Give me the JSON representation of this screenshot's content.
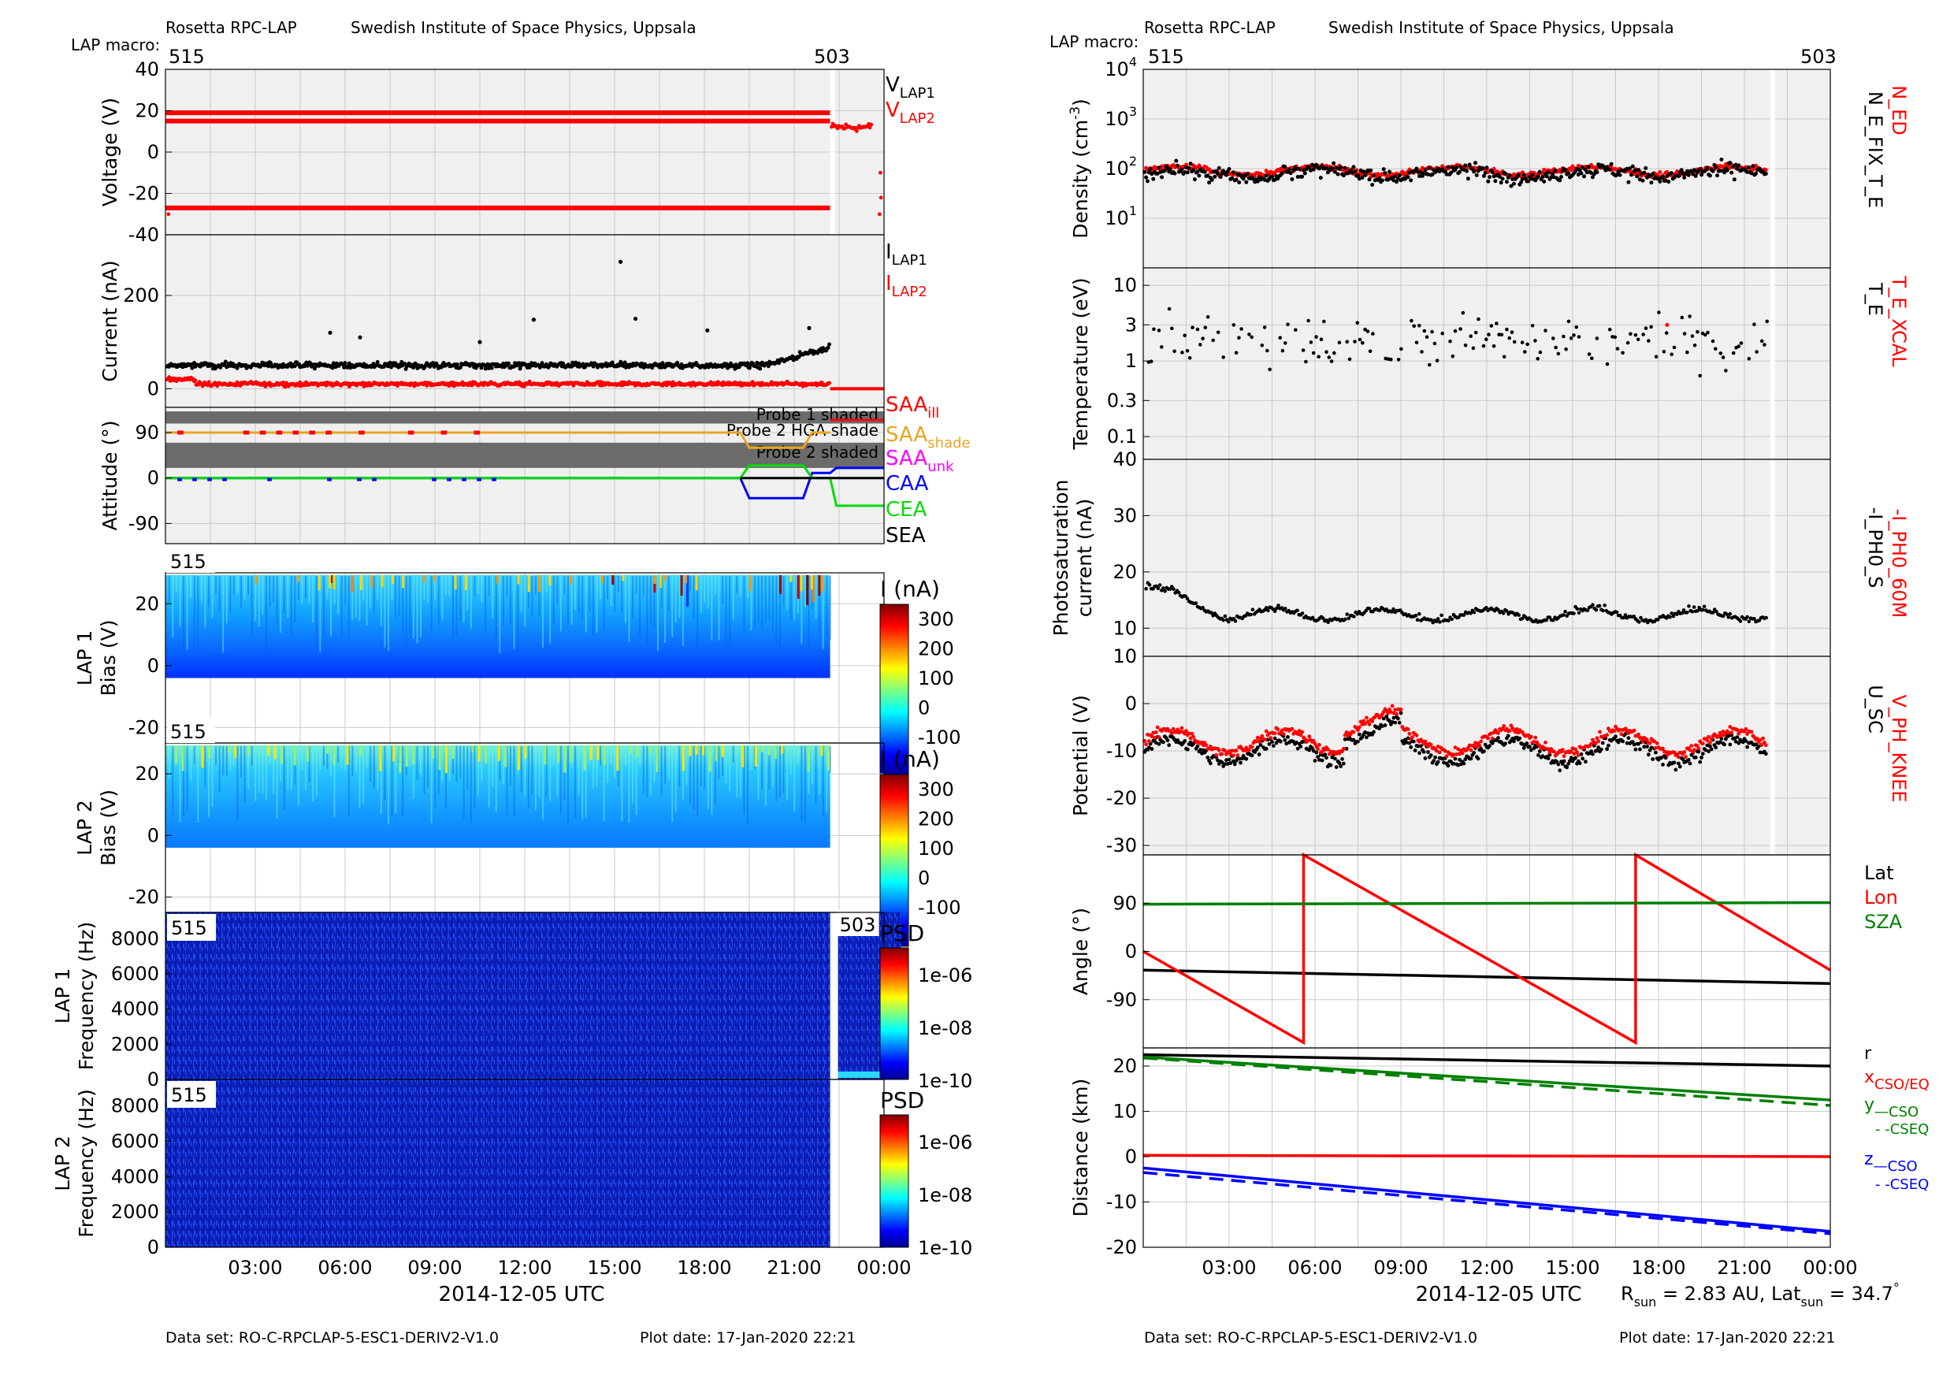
{
  "header": {
    "instrument": "Rosetta RPC-LAP",
    "institute": "Swedish Institute of Space Physics, Uppsala",
    "macro_label": "LAP macro:",
    "macro_start": "515",
    "macro_end": "503",
    "dataset": "Data set: RO-C-RPCLAP-5-ESC1-DERIV2-V1.0",
    "plot_date": "Plot date: 17-Jan-2020 22:21",
    "xlabel": "2014-12-05 UTC",
    "x_ticks": [
      "03:00",
      "06:00",
      "09:00",
      "12:00",
      "15:00",
      "18:00",
      "21:00",
      "00:00"
    ],
    "rsun_label": "R",
    "rsun_sub": "sun",
    "rsun_value": " = 2.83 AU, Lat",
    "lat_sub": "sun",
    "lat_value": " = 34.7",
    "degree": "°"
  },
  "colors": {
    "panel_bg": "#f0f0f0",
    "grid": "#c8c8c8",
    "red": "#ff0000",
    "black": "#000000",
    "blue": "#0000ff",
    "green": "#00dd00",
    "dark_green": "#008000",
    "orange": "#eaa420",
    "magenta": "#ff00ff",
    "shade": "#6b6b6b"
  },
  "chart_data": [
    {
      "id": "voltage",
      "type": "line",
      "ylabel": "Voltage (V)",
      "yticks": [
        "40",
        "20",
        "0",
        "-20",
        "-40"
      ],
      "ylim": [
        -40,
        40
      ],
      "series": [
        {
          "name": "V",
          "sub": "LAP1",
          "color": "#000000"
        },
        {
          "name": "V",
          "sub": "LAP2",
          "color": "#ff0000"
        }
      ],
      "levels": [
        19,
        15,
        -27
      ],
      "after_macro_level": 10,
      "macro_switch": 22.2
    },
    {
      "id": "current",
      "type": "scatter",
      "ylabel": "Current (nA)",
      "yticks": [
        "200",
        "0"
      ],
      "ylim": [
        -40,
        330
      ],
      "series": [
        {
          "name": "I",
          "sub": "LAP1",
          "color": "#000000",
          "baseline": 50
        },
        {
          "name": "I",
          "sub": "LAP2",
          "color": "#ff0000",
          "baseline": 10
        }
      ],
      "outliers": [
        [
          15.2,
          272
        ],
        [
          12.3,
          148
        ],
        [
          15.7,
          150
        ],
        [
          18.1,
          125
        ],
        [
          21.5,
          130
        ],
        [
          5.5,
          120
        ],
        [
          6.5,
          110
        ],
        [
          10.5,
          100
        ]
      ],
      "after_macro_level": 0
    },
    {
      "id": "attitude",
      "type": "line",
      "ylabel": "Attitude (°)",
      "yticks": [
        "90",
        "0",
        "-90"
      ],
      "ylim": [
        -130,
        140
      ],
      "shade_labels": [
        "Probe 1 shaded",
        "Probe 2 HGA shade",
        "Probe 2 shaded"
      ],
      "series": [
        {
          "name": "SAA",
          "sub": "ill",
          "color": "#ff0000"
        },
        {
          "name": "SAA",
          "sub": "shade",
          "color": "#eaa420"
        },
        {
          "name": "SAA",
          "sub": "unk",
          "color": "#ff00ff"
        },
        {
          "name": "CAA",
          "sub": "",
          "color": "#0000ff"
        },
        {
          "name": "CEA",
          "sub": "",
          "color": "#00dd00"
        },
        {
          "name": "SEA",
          "sub": "",
          "color": "#000000"
        }
      ],
      "saa": 90,
      "caa": 0,
      "cea": 0
    },
    {
      "id": "lap1_bias",
      "type": "heatmap",
      "ylabel": [
        "LAP 1",
        "Bias (V)"
      ],
      "yticks": [
        "20",
        "0",
        "-20"
      ],
      "ylim": [
        -25,
        30
      ],
      "macro_tag": "515",
      "colorbar_title": "I (nA)",
      "colorbar_ticks": [
        "300",
        "200",
        "100",
        "0",
        "-100"
      ]
    },
    {
      "id": "lap2_bias",
      "type": "heatmap",
      "ylabel": [
        "LAP 2",
        "Bias (V)"
      ],
      "yticks": [
        "20",
        "0",
        "-20"
      ],
      "ylim": [
        -25,
        30
      ],
      "macro_tag": "515",
      "colorbar_title": "I (nA)",
      "colorbar_ticks": [
        "300",
        "200",
        "100",
        "0",
        "-100"
      ]
    },
    {
      "id": "lap1_freq",
      "type": "heatmap",
      "ylabel": [
        "LAP 1",
        "Frequency (Hz)"
      ],
      "yticks": [
        "8000",
        "6000",
        "4000",
        "2000",
        "0"
      ],
      "ylim": [
        0,
        9500
      ],
      "macro_tag": "515",
      "macro_tag2": "503",
      "colorbar_title": "PSD",
      "colorbar_ticks": [
        "1e-06",
        "1e-08",
        "1e-10"
      ]
    },
    {
      "id": "lap2_freq",
      "type": "heatmap",
      "ylabel": [
        "LAP 2",
        "Frequency (Hz)"
      ],
      "yticks": [
        "8000",
        "6000",
        "4000",
        "2000",
        "0"
      ],
      "ylim": [
        0,
        9500
      ],
      "macro_tag": "515",
      "colorbar_title": "PSD",
      "colorbar_ticks": [
        "1e-06",
        "1e-08",
        "1e-10"
      ]
    },
    {
      "id": "density",
      "type": "scatter",
      "ylabel": "Density (cm",
      "ylabel_sup": "-3",
      "ylabel_end": ")",
      "yticks": [
        {
          "b": "10",
          "e": "4"
        },
        {
          "b": "10",
          "e": "3"
        },
        {
          "b": "10",
          "e": "2"
        },
        {
          "b": "10",
          "e": "1"
        }
      ],
      "scale": "log",
      "ylim": [
        1,
        10000
      ],
      "series": [
        {
          "name": "N_ED",
          "color": "#ff0000",
          "median": 90
        },
        {
          "name": "N_E_FIX_T_E",
          "color": "#000000",
          "median": 80
        }
      ]
    },
    {
      "id": "temperature",
      "type": "scatter",
      "ylabel": "Temperature (eV)",
      "yticks": [
        "10",
        "3",
        "1",
        "0.3",
        "0.1"
      ],
      "scale": "log",
      "ylim": [
        0.05,
        17
      ],
      "series": [
        {
          "name": "T_E_XCAL",
          "color": "#ff0000"
        },
        {
          "name": "T_E",
          "color": "#000000",
          "median": 1.8
        }
      ]
    },
    {
      "id": "photosat",
      "type": "scatter",
      "ylabel": [
        "Photosaturation",
        "current (nA)"
      ],
      "yticks": [
        "40",
        "30",
        "20",
        "10"
      ],
      "ylim": [
        5,
        40
      ],
      "series": [
        {
          "name": "-I_PH0_60M",
          "color": "#ff0000"
        },
        {
          "name": "-I_PH0_S",
          "color": "#000000",
          "median": 12
        }
      ]
    },
    {
      "id": "potential",
      "type": "scatter",
      "ylabel": "Potential (V)",
      "yticks": [
        "10",
        "0",
        "-10",
        "-20",
        "-30"
      ],
      "ylim": [
        -32,
        10
      ],
      "series": [
        {
          "name": "V_PH_KNEE",
          "color": "#ff0000",
          "median": -8
        },
        {
          "name": "U_SC",
          "color": "#000000",
          "median": -10
        }
      ]
    },
    {
      "id": "angle",
      "type": "line",
      "ylabel": "Angle (°)",
      "yticks": [
        "90",
        "0",
        "-90"
      ],
      "ylim": [
        -180,
        180
      ],
      "series": [
        {
          "name": "Lat",
          "color": "#000000",
          "x": [
            0,
            24
          ],
          "y": [
            -35,
            -60
          ]
        },
        {
          "name": "Lon",
          "color": "#ff0000",
          "x": [
            0,
            5.6,
            5.6,
            17.2,
            17.2,
            24
          ],
          "y": [
            0,
            -170,
            180,
            -170,
            180,
            -35
          ]
        },
        {
          "name": "SZA",
          "color": "#008000",
          "x": [
            0,
            24
          ],
          "y": [
            88,
            91
          ]
        }
      ]
    },
    {
      "id": "distance",
      "type": "line",
      "ylabel": "Distance (km)",
      "yticks": [
        "20",
        "10",
        "0",
        "-10",
        "-20"
      ],
      "ylim": [
        -20,
        24
      ],
      "series": [
        {
          "name": "r",
          "sub": "",
          "color": "#000000",
          "x": [
            0,
            24
          ],
          "y": [
            22.5,
            20
          ]
        },
        {
          "name": "x",
          "sub": "CSO/EQ",
          "color": "#ff0000",
          "x": [
            0,
            24
          ],
          "y": [
            0.3,
            0
          ]
        },
        {
          "name": "y",
          "sub": "—CSO",
          "color": "#008000",
          "x": [
            0,
            24
          ],
          "y": [
            22,
            12.5
          ]
        },
        {
          "name": "",
          "sub": "- -CSEQ",
          "color": "#008000",
          "dashed": true,
          "x": [
            0,
            24
          ],
          "y": [
            21.8,
            11.3
          ]
        },
        {
          "name": "z",
          "sub": "—CSO",
          "color": "#0000ff",
          "x": [
            0,
            24
          ],
          "y": [
            -2.5,
            -16.5
          ]
        },
        {
          "name": "",
          "sub": "- -CSEQ",
          "color": "#0000ff",
          "dashed": true,
          "x": [
            0,
            24
          ],
          "y": [
            -3.5,
            -17
          ]
        }
      ]
    }
  ]
}
